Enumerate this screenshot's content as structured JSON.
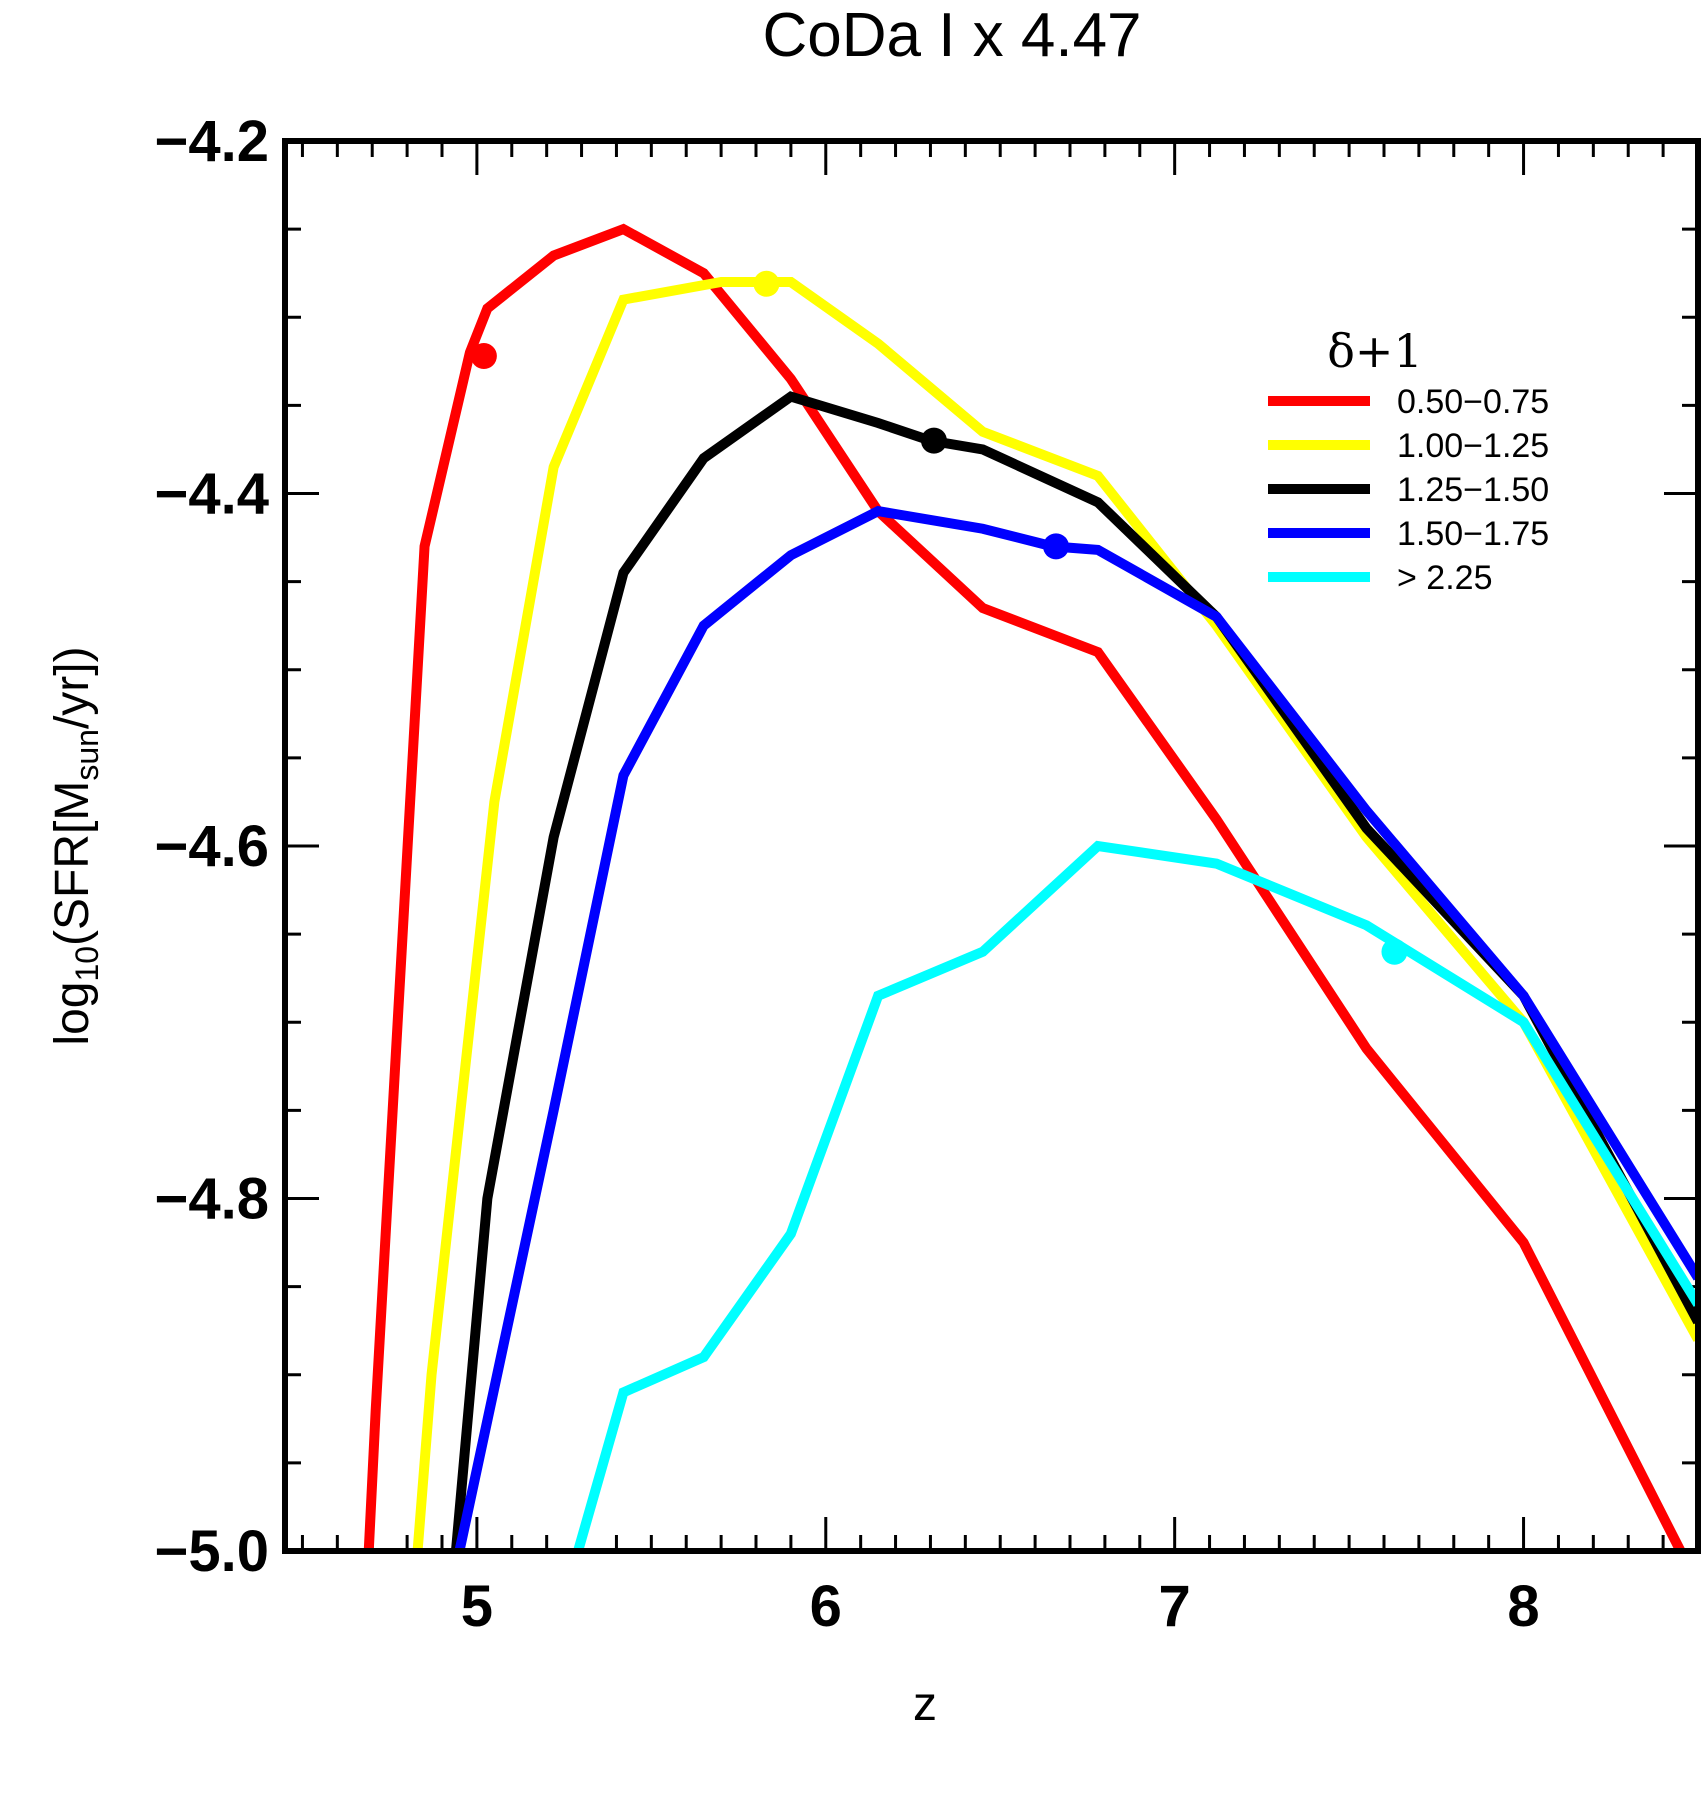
{
  "chart_data": {
    "type": "line",
    "title": "CoDa I x 4.47",
    "xlabel": "z",
    "ylabel_parts": {
      "prefix": "log",
      "sub1": "10",
      "mid": "(SFR[M",
      "sub2": "sun",
      "suffix": "/yr])"
    },
    "xlim": [
      4.45,
      8.5
    ],
    "ylim": [
      -5.0,
      -4.2
    ],
    "x_ticks": [
      {
        "value": 5,
        "label": "5"
      },
      {
        "value": 6,
        "label": "6"
      },
      {
        "value": 7,
        "label": "7"
      },
      {
        "value": 8,
        "label": "8"
      }
    ],
    "y_ticks": [
      {
        "value": -4.2,
        "label": "−4.2"
      },
      {
        "value": -4.4,
        "label": "−4.4"
      },
      {
        "value": -4.6,
        "label": "−4.6"
      },
      {
        "value": -4.8,
        "label": "−4.8"
      },
      {
        "value": -5.0,
        "label": "−5.0"
      }
    ],
    "legend_title": "δ+1",
    "legend_position": "top-right",
    "series": [
      {
        "name": "0.50−0.75",
        "color": "#ff0000",
        "x": [
          4.69,
          4.71,
          4.85,
          4.98,
          5.03,
          5.22,
          5.42,
          5.65,
          5.9,
          6.15,
          6.45,
          6.78,
          7.12,
          7.55,
          8.0,
          8.45
        ],
        "y": [
          -5.0,
          -4.92,
          -4.43,
          -4.32,
          -4.295,
          -4.265,
          -4.25,
          -4.275,
          -4.335,
          -4.41,
          -4.465,
          -4.49,
          -4.585,
          -4.715,
          -4.825,
          -5.0
        ],
        "marker": {
          "x": 5.02,
          "y": -4.322
        }
      },
      {
        "name": "1.00−1.25",
        "color": "#ffff00",
        "x": [
          4.83,
          4.87,
          5.05,
          5.22,
          5.42,
          5.7,
          5.9,
          6.15,
          6.45,
          6.78,
          7.12,
          7.55,
          8.0,
          8.5
        ],
        "y": [
          -5.0,
          -4.9,
          -4.575,
          -4.385,
          -4.29,
          -4.28,
          -4.28,
          -4.315,
          -4.365,
          -4.39,
          -4.475,
          -4.595,
          -4.7,
          -4.88
        ],
        "marker": {
          "x": 5.83,
          "y": -4.281
        }
      },
      {
        "name": "1.25−1.50",
        "color": "#000000",
        "x": [
          4.94,
          5.03,
          5.22,
          5.42,
          5.65,
          5.9,
          6.15,
          6.3,
          6.45,
          6.78,
          7.12,
          7.55,
          8.0,
          8.5
        ],
        "y": [
          -5.0,
          -4.8,
          -4.595,
          -4.445,
          -4.38,
          -4.345,
          -4.36,
          -4.37,
          -4.375,
          -4.405,
          -4.47,
          -4.59,
          -4.685,
          -4.87
        ],
        "marker": {
          "x": 6.31,
          "y": -4.37
        }
      },
      {
        "name": "1.50−1.75",
        "color": "#0000ff",
        "x": [
          4.95,
          5.22,
          5.42,
          5.65,
          5.9,
          6.15,
          6.45,
          6.65,
          6.78,
          7.12,
          7.55,
          8.0,
          8.5
        ],
        "y": [
          -5.0,
          -4.75,
          -4.56,
          -4.475,
          -4.435,
          -4.41,
          -4.42,
          -4.43,
          -4.432,
          -4.47,
          -4.58,
          -4.685,
          -4.845
        ],
        "marker": {
          "x": 6.66,
          "y": -4.43
        }
      },
      {
        "name": "> 2.25",
        "color": "#00ffff",
        "x": [
          5.29,
          5.42,
          5.65,
          5.9,
          6.15,
          6.45,
          6.78,
          7.12,
          7.55,
          8.0,
          8.5
        ],
        "y": [
          -5.0,
          -4.91,
          -4.89,
          -4.82,
          -4.685,
          -4.66,
          -4.6,
          -4.61,
          -4.645,
          -4.7,
          -4.86
        ],
        "marker": {
          "x": 7.63,
          "y": -4.66
        }
      }
    ]
  }
}
